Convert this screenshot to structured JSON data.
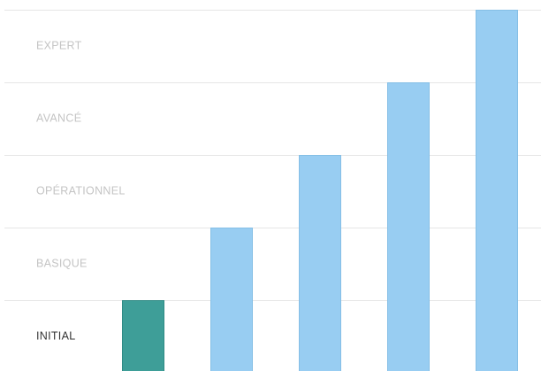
{
  "chart_data": {
    "type": "bar",
    "categories": [
      "",
      "",
      "",
      "",
      ""
    ],
    "values": [
      1,
      2,
      3,
      4,
      5
    ],
    "ylim": [
      0,
      5
    ],
    "grid": true,
    "y_tick_labels": [
      {
        "value": 1,
        "label": "INITIAL"
      },
      {
        "value": 2,
        "label": "BASIQUE"
      },
      {
        "value": 3,
        "label": "OPÉRATIONNEL"
      },
      {
        "value": 4,
        "label": "AVANCÉ"
      },
      {
        "value": 5,
        "label": "EXPERT"
      }
    ],
    "highlight_index": 0
  },
  "colors": {
    "highlight_bar": "#3e9e98",
    "highlight_bar_border": "#2f8a84",
    "bar": "#98cdf2",
    "bar_border": "#85bfe6",
    "active_label": "#333333",
    "muted_label": "#c4c4c4",
    "gridline": "#e6e6e6"
  }
}
